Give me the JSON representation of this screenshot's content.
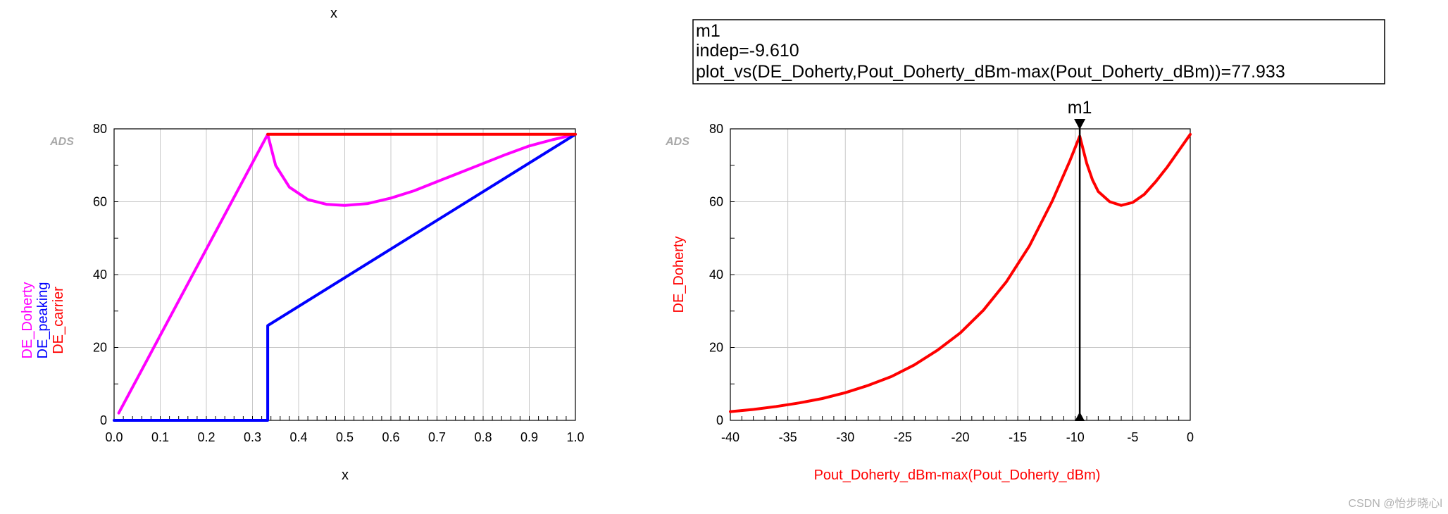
{
  "chart_data": [
    {
      "type": "line",
      "top_label": "x",
      "watermark": "ADS",
      "xlabel": "x",
      "ylabels": [
        {
          "text": "DE_Doherty",
          "color": "#ff00ff"
        },
        {
          "text": "DE_peaking",
          "color": "#0000ff"
        },
        {
          "text": "DE_carrier",
          "color": "#ff0000"
        }
      ],
      "xlim": [
        0,
        1
      ],
      "ylim": [
        0,
        80
      ],
      "xticks": [
        0.0,
        0.1,
        0.2,
        0.3,
        0.4,
        0.5,
        0.6,
        0.7,
        0.8,
        0.9,
        1.0
      ],
      "xtick_labels": [
        "0.0",
        "0.1",
        "0.2",
        "0.3",
        "0.4",
        "0.5",
        "0.6",
        "0.7",
        "0.8",
        "0.9",
        "1.0"
      ],
      "yticks": [
        0,
        20,
        40,
        60,
        80
      ],
      "ytick_labels": [
        "0",
        "20",
        "40",
        "60",
        "80"
      ],
      "grid": true,
      "series": [
        {
          "name": "DE_Doherty",
          "color": "#ff00ff",
          "x": [
            0.01,
            0.333,
            0.35,
            0.38,
            0.42,
            0.46,
            0.5,
            0.55,
            0.6,
            0.65,
            0.7,
            0.75,
            0.8,
            0.85,
            0.9,
            0.95,
            1.0
          ],
          "y": [
            2,
            78.5,
            70,
            64,
            60.6,
            59.3,
            59.0,
            59.5,
            61,
            63,
            65.5,
            68,
            70.5,
            73,
            75.3,
            77,
            78.5
          ]
        },
        {
          "name": "DE_peaking",
          "color": "#0000ff",
          "x": [
            0.0,
            0.333,
            0.333,
            1.0
          ],
          "y": [
            0,
            0,
            26,
            78.5
          ]
        },
        {
          "name": "DE_carrier",
          "color": "#ff0000",
          "x": [
            0.333,
            1.0
          ],
          "y": [
            78.5,
            78.5
          ]
        }
      ]
    },
    {
      "type": "line",
      "watermark": "ADS",
      "xlabel": "Pout_Doherty_dBm-max(Pout_Doherty_dBm)",
      "ylabel": "DE_Doherty",
      "label_color": "#ff0000",
      "xlim": [
        -40,
        0
      ],
      "ylim": [
        0,
        80
      ],
      "xticks": [
        -40,
        -35,
        -30,
        -25,
        -20,
        -15,
        -10,
        -5,
        0
      ],
      "xtick_labels": [
        "-40",
        "-35",
        "-30",
        "-25",
        "-20",
        "-15",
        "-10",
        "-5",
        "0"
      ],
      "yticks": [
        0,
        20,
        40,
        60,
        80
      ],
      "ytick_labels": [
        "0",
        "20",
        "40",
        "60",
        "80"
      ],
      "grid": true,
      "marker": {
        "name": "m1",
        "x": -9.61,
        "y": 77.933,
        "readout": [
          "m1",
          "indep=-9.610",
          "plot_vs(DE_Doherty,Pout_Doherty_dBm-max(Pout_Doherty_dBm))=77.933"
        ]
      },
      "series": [
        {
          "name": "DE_Doherty",
          "color": "#ff0000",
          "x": [
            -40,
            -38,
            -36,
            -34,
            -32,
            -30,
            -28,
            -26,
            -24,
            -22,
            -20,
            -18,
            -16,
            -14,
            -12,
            -10.5,
            -9.61,
            -9.0,
            -8.5,
            -8.0,
            -7.0,
            -6.0,
            -5.0,
            -4.0,
            -3.0,
            -2.0,
            -1.0,
            0
          ],
          "y": [
            2.4,
            3.0,
            3.8,
            4.8,
            6.0,
            7.6,
            9.6,
            12.0,
            15.2,
            19.2,
            24.0,
            30.2,
            38.0,
            47.8,
            60.2,
            71.0,
            78.0,
            70.5,
            66.0,
            62.8,
            60.0,
            59.0,
            59.8,
            62.0,
            65.5,
            69.5,
            74.0,
            78.5
          ]
        }
      ]
    }
  ],
  "footer": {
    "credit": "CSDN @怡步晓心l"
  }
}
